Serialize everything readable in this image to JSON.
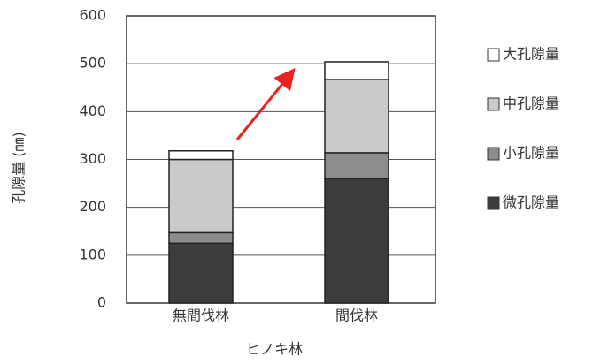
{
  "chart_data": {
    "type": "stacked-bar",
    "y_label": "孔隙量 (㎜)",
    "x_label": "ヒノキ林",
    "categories": [
      "無間伐林",
      "間伐林"
    ],
    "series": [
      {
        "name": "微孔隙量",
        "color": "#3c3c3c",
        "values": [
          125,
          260
        ]
      },
      {
        "name": "小孔隙量",
        "color": "#8c8c8c",
        "values": [
          22,
          54
        ]
      },
      {
        "name": "中孔隙量",
        "color": "#cacaca",
        "values": [
          153,
          153
        ]
      },
      {
        "name": "大孔隙量",
        "color": "#ffffff",
        "values": [
          18,
          37
        ]
      }
    ],
    "ylim": [
      0,
      600
    ],
    "yticks": [
      0,
      100,
      200,
      300,
      400,
      500,
      600
    ],
    "grid": true
  }
}
